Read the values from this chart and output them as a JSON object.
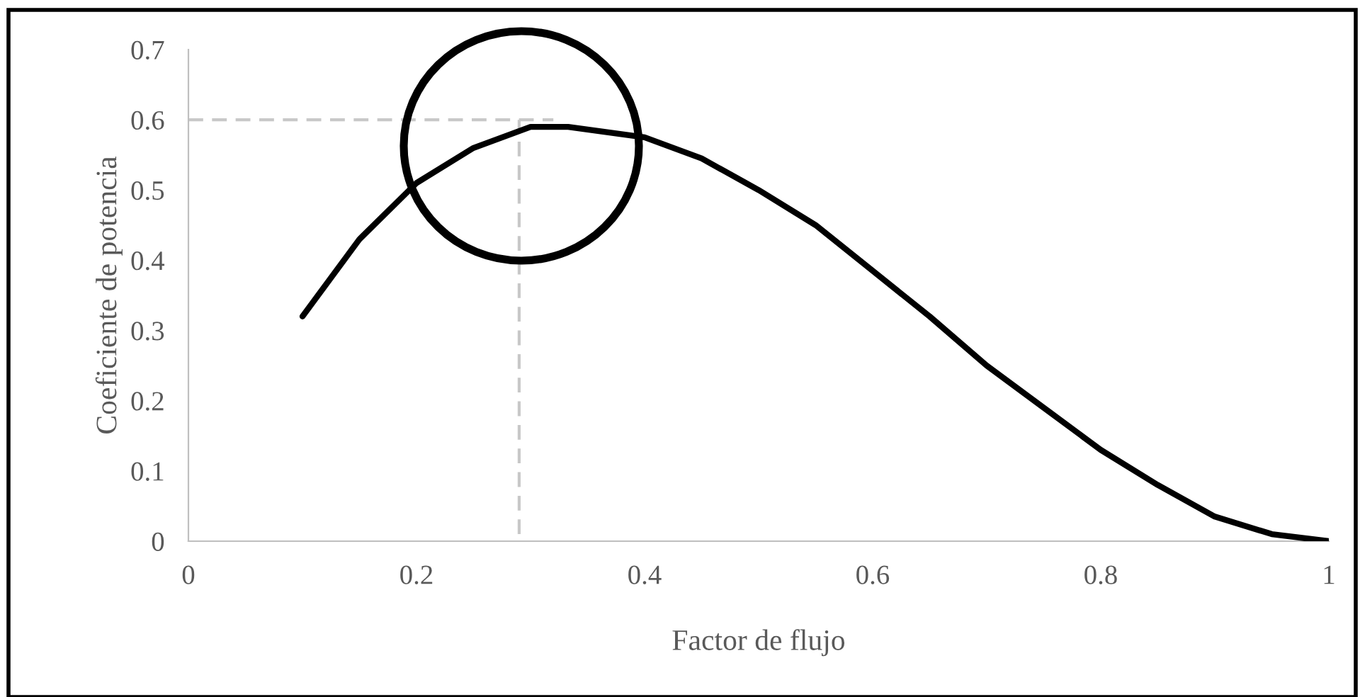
{
  "chart_data": {
    "type": "line",
    "xlabel": "Factor de flujo",
    "ylabel": "Coeficiente de potencia",
    "xlim": [
      0,
      1
    ],
    "xticks": [
      0,
      0.2,
      0.4,
      0.6,
      0.8,
      1
    ],
    "ylim": [
      0,
      0.7
    ],
    "yticks": [
      0,
      0.1,
      0.2,
      0.3,
      0.4,
      0.5,
      0.6,
      0.7
    ],
    "grid": false,
    "legend": false,
    "marker": "none",
    "series": [
      {
        "color": "#000000",
        "line_style": "solid",
        "x": [
          0.1,
          0.15,
          0.2,
          0.25,
          0.3,
          0.333,
          0.4,
          0.45,
          0.5,
          0.55,
          0.6,
          0.65,
          0.7,
          0.75,
          0.8,
          0.85,
          0.9,
          0.95,
          1
        ],
        "values": [
          0.32,
          0.43,
          0.51,
          0.56,
          0.59,
          0.59,
          0.575,
          0.545,
          0.5,
          0.45,
          0.385,
          0.32,
          0.25,
          0.19,
          0.13,
          0.08,
          0.035,
          0.01,
          0
        ]
      },
      {
        "color": "#c8c8c8",
        "line_style": "dashed",
        "x": [
          0,
          0.32
        ],
        "values": [
          0.6,
          0.6
        ]
      },
      {
        "color": "#c8c8c8",
        "line_style": "dashed",
        "x": [
          0.29,
          0.29
        ],
        "values": [
          0.01,
          0.6
        ]
      }
    ]
  }
}
